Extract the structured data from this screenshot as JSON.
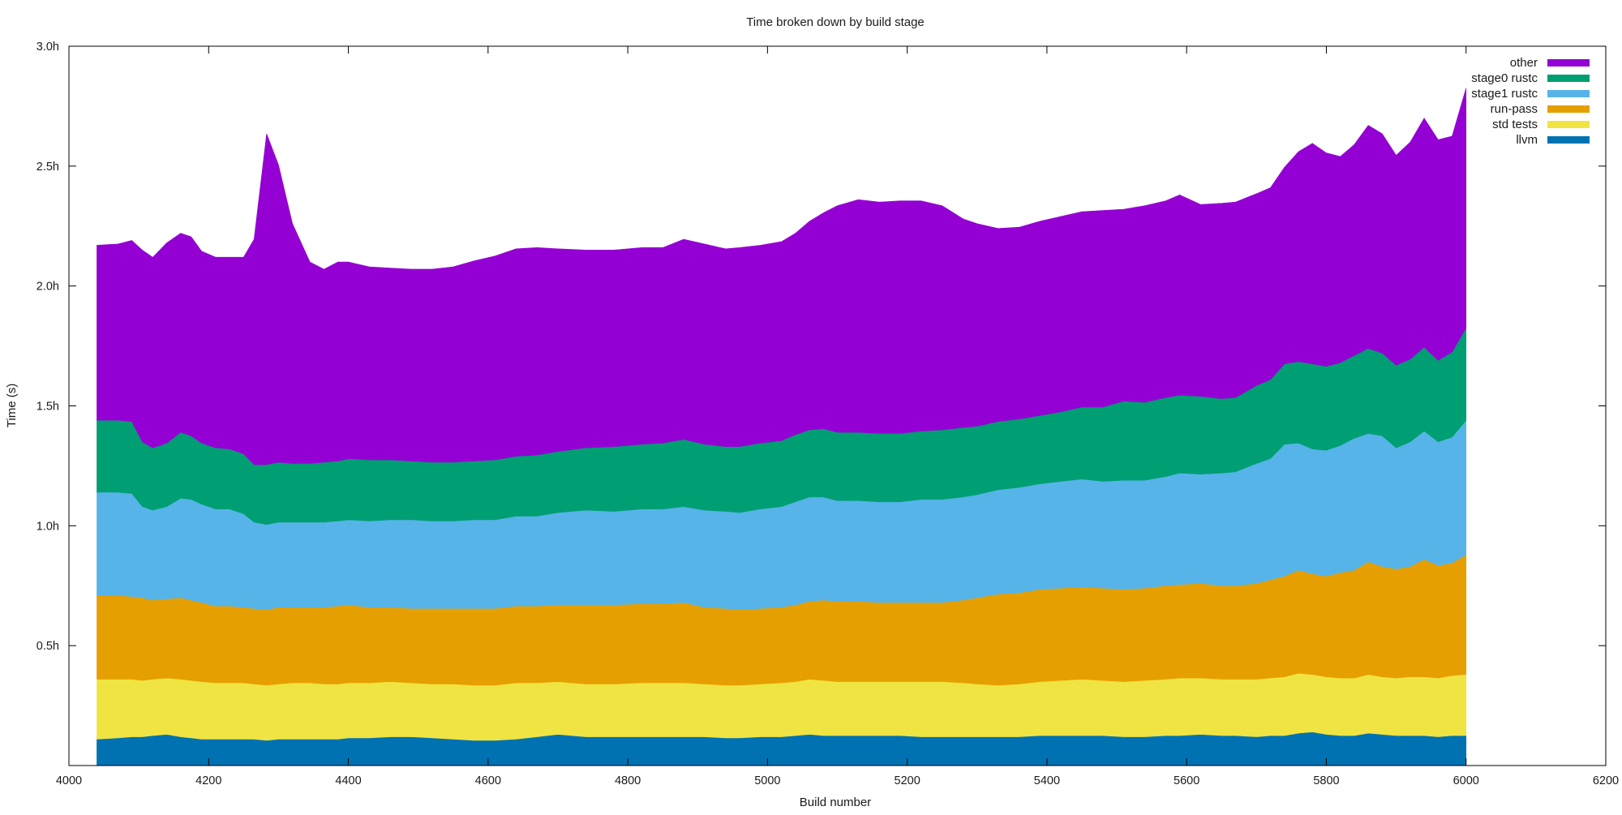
{
  "chart_data": {
    "type": "area",
    "stacked": true,
    "title": "Time broken down by build stage",
    "xlabel": "Build number",
    "ylabel": "Time (s)",
    "xlim": [
      4000,
      6200
    ],
    "ylim": [
      0,
      3
    ],
    "x_ticks": [
      4000,
      4200,
      4400,
      4600,
      4800,
      5000,
      5200,
      5400,
      5600,
      5800,
      6000,
      6200
    ],
    "x_tick_labels": [
      "4000",
      "4200",
      "4400",
      "4600",
      "4800",
      "5000",
      "5200",
      "5400",
      "5600",
      "5800",
      "6000",
      "6200"
    ],
    "y_ticks": [
      0.5,
      1.0,
      1.5,
      2.0,
      2.5,
      3.0
    ],
    "y_tick_labels": [
      "0.5h",
      "1.0h",
      "1.5h",
      "2.0h",
      "2.5h",
      "3.0h"
    ],
    "grid": false,
    "legend_position": "top-right",
    "x": [
      4040,
      4070,
      4090,
      4105,
      4120,
      4140,
      4160,
      4175,
      4190,
      4210,
      4230,
      4250,
      4265,
      4283,
      4300,
      4320,
      4345,
      4365,
      4385,
      4400,
      4430,
      4460,
      4490,
      4520,
      4550,
      4580,
      4610,
      4640,
      4670,
      4700,
      4740,
      4780,
      4820,
      4850,
      4880,
      4910,
      4940,
      4960,
      4990,
      5020,
      5040,
      5060,
      5080,
      5100,
      5130,
      5160,
      5190,
      5220,
      5250,
      5280,
      5300,
      5330,
      5360,
      5390,
      5420,
      5450,
      5480,
      5510,
      5540,
      5570,
      5590,
      5620,
      5650,
      5670,
      5700,
      5720,
      5740,
      5760,
      5780,
      5800,
      5820,
      5840,
      5860,
      5880,
      5900,
      5920,
      5940,
      5960,
      5980,
      6000
    ],
    "series": [
      {
        "name": "llvm",
        "color": "#0072b2",
        "values": [
          0.11,
          0.115,
          0.12,
          0.12,
          0.125,
          0.13,
          0.12,
          0.115,
          0.11,
          0.11,
          0.11,
          0.11,
          0.11,
          0.105,
          0.11,
          0.11,
          0.11,
          0.11,
          0.11,
          0.115,
          0.115,
          0.12,
          0.12,
          0.115,
          0.11,
          0.105,
          0.105,
          0.11,
          0.12,
          0.13,
          0.12,
          0.12,
          0.12,
          0.12,
          0.12,
          0.12,
          0.115,
          0.115,
          0.12,
          0.12,
          0.125,
          0.13,
          0.125,
          0.125,
          0.125,
          0.125,
          0.125,
          0.12,
          0.12,
          0.12,
          0.12,
          0.12,
          0.12,
          0.125,
          0.125,
          0.125,
          0.125,
          0.12,
          0.12,
          0.125,
          0.125,
          0.13,
          0.125,
          0.125,
          0.12,
          0.125,
          0.125,
          0.135,
          0.14,
          0.13,
          0.125,
          0.125,
          0.135,
          0.13,
          0.125,
          0.125,
          0.125,
          0.12,
          0.125,
          0.125
        ]
      },
      {
        "name": "std tests",
        "color": "#f0e442",
        "values": [
          0.25,
          0.245,
          0.24,
          0.235,
          0.235,
          0.235,
          0.24,
          0.24,
          0.24,
          0.235,
          0.235,
          0.235,
          0.23,
          0.23,
          0.23,
          0.235,
          0.235,
          0.23,
          0.23,
          0.23,
          0.23,
          0.23,
          0.225,
          0.225,
          0.23,
          0.23,
          0.23,
          0.235,
          0.225,
          0.22,
          0.22,
          0.22,
          0.225,
          0.225,
          0.225,
          0.22,
          0.22,
          0.22,
          0.22,
          0.225,
          0.225,
          0.23,
          0.23,
          0.225,
          0.225,
          0.225,
          0.225,
          0.23,
          0.23,
          0.225,
          0.22,
          0.215,
          0.22,
          0.225,
          0.23,
          0.235,
          0.23,
          0.23,
          0.235,
          0.235,
          0.24,
          0.235,
          0.235,
          0.235,
          0.24,
          0.24,
          0.245,
          0.25,
          0.24,
          0.24,
          0.24,
          0.24,
          0.245,
          0.24,
          0.24,
          0.245,
          0.245,
          0.245,
          0.25,
          0.255
        ]
      },
      {
        "name": "run-pass",
        "color": "#e69f00",
        "values": [
          0.35,
          0.35,
          0.345,
          0.345,
          0.33,
          0.33,
          0.34,
          0.335,
          0.33,
          0.32,
          0.32,
          0.315,
          0.315,
          0.315,
          0.32,
          0.315,
          0.315,
          0.32,
          0.325,
          0.325,
          0.315,
          0.31,
          0.31,
          0.315,
          0.315,
          0.32,
          0.32,
          0.32,
          0.32,
          0.32,
          0.33,
          0.33,
          0.33,
          0.33,
          0.335,
          0.32,
          0.32,
          0.315,
          0.315,
          0.315,
          0.32,
          0.325,
          0.335,
          0.335,
          0.335,
          0.33,
          0.33,
          0.33,
          0.33,
          0.345,
          0.36,
          0.38,
          0.38,
          0.385,
          0.385,
          0.385,
          0.385,
          0.385,
          0.385,
          0.39,
          0.39,
          0.395,
          0.39,
          0.39,
          0.4,
          0.41,
          0.42,
          0.43,
          0.42,
          0.42,
          0.44,
          0.45,
          0.47,
          0.46,
          0.455,
          0.46,
          0.49,
          0.47,
          0.47,
          0.5
        ]
      },
      {
        "name": "stage1 rustc",
        "color": "#56b4e9",
        "values": [
          0.43,
          0.43,
          0.43,
          0.38,
          0.375,
          0.385,
          0.415,
          0.42,
          0.41,
          0.405,
          0.405,
          0.39,
          0.36,
          0.355,
          0.355,
          0.355,
          0.355,
          0.355,
          0.355,
          0.355,
          0.36,
          0.365,
          0.37,
          0.365,
          0.365,
          0.37,
          0.37,
          0.375,
          0.375,
          0.385,
          0.395,
          0.39,
          0.395,
          0.395,
          0.4,
          0.405,
          0.405,
          0.405,
          0.415,
          0.42,
          0.43,
          0.435,
          0.43,
          0.42,
          0.42,
          0.42,
          0.42,
          0.43,
          0.43,
          0.43,
          0.43,
          0.435,
          0.44,
          0.44,
          0.445,
          0.45,
          0.445,
          0.455,
          0.45,
          0.455,
          0.465,
          0.455,
          0.47,
          0.475,
          0.5,
          0.505,
          0.55,
          0.53,
          0.52,
          0.525,
          0.53,
          0.55,
          0.535,
          0.545,
          0.505,
          0.52,
          0.535,
          0.515,
          0.525,
          0.56
        ]
      },
      {
        "name": "stage0 rustc",
        "color": "#009e73",
        "values": [
          0.3,
          0.3,
          0.3,
          0.27,
          0.26,
          0.265,
          0.275,
          0.265,
          0.255,
          0.255,
          0.25,
          0.25,
          0.24,
          0.25,
          0.25,
          0.245,
          0.245,
          0.25,
          0.25,
          0.255,
          0.255,
          0.25,
          0.245,
          0.245,
          0.245,
          0.245,
          0.25,
          0.25,
          0.255,
          0.255,
          0.26,
          0.27,
          0.27,
          0.275,
          0.28,
          0.275,
          0.27,
          0.275,
          0.275,
          0.275,
          0.28,
          0.28,
          0.285,
          0.285,
          0.285,
          0.285,
          0.285,
          0.285,
          0.29,
          0.29,
          0.285,
          0.285,
          0.285,
          0.285,
          0.29,
          0.3,
          0.31,
          0.33,
          0.325,
          0.33,
          0.325,
          0.325,
          0.31,
          0.31,
          0.325,
          0.33,
          0.335,
          0.34,
          0.355,
          0.35,
          0.345,
          0.345,
          0.355,
          0.345,
          0.345,
          0.345,
          0.35,
          0.34,
          0.355,
          0.385
        ]
      },
      {
        "name": "other",
        "color": "#9400d3",
        "values": [
          0.73,
          0.735,
          0.755,
          0.8,
          0.795,
          0.835,
          0.83,
          0.83,
          0.8,
          0.795,
          0.8,
          0.82,
          0.94,
          1.38,
          1.24,
          1.0,
          0.84,
          0.805,
          0.83,
          0.82,
          0.805,
          0.8,
          0.8,
          0.805,
          0.815,
          0.835,
          0.85,
          0.865,
          0.865,
          0.845,
          0.825,
          0.82,
          0.82,
          0.815,
          0.835,
          0.835,
          0.825,
          0.83,
          0.825,
          0.83,
          0.84,
          0.87,
          0.9,
          0.945,
          0.97,
          0.965,
          0.97,
          0.96,
          0.935,
          0.87,
          0.845,
          0.805,
          0.8,
          0.81,
          0.815,
          0.815,
          0.82,
          0.8,
          0.82,
          0.82,
          0.835,
          0.8,
          0.815,
          0.815,
          0.8,
          0.8,
          0.82,
          0.875,
          0.92,
          0.89,
          0.86,
          0.88,
          0.93,
          0.915,
          0.875,
          0.905,
          0.955,
          0.92,
          0.9,
          1.0
        ]
      }
    ],
    "legend_order": [
      "other",
      "stage0 rustc",
      "stage1 rustc",
      "run-pass",
      "std tests",
      "llvm"
    ]
  }
}
